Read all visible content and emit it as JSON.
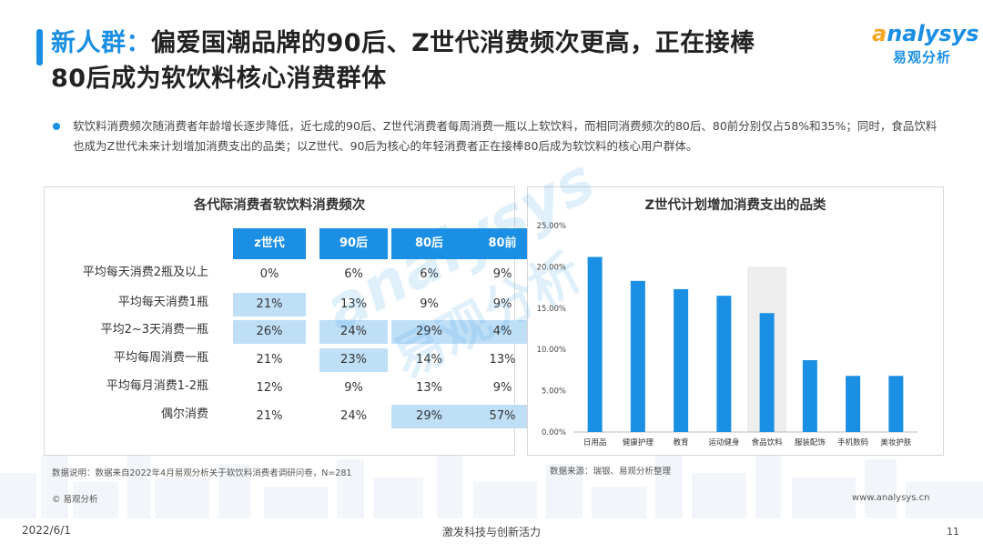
{
  "header": {
    "title_highlight": "新人群：",
    "title_line1_rest": "偏爱国潮品牌的90后、Z世代消费频次更高，正在接棒",
    "title_line2": "80后成为软饮料核心消费群体"
  },
  "logo": {
    "brand_a": "a",
    "brand_rest": "nalysys",
    "cn": "易观分析"
  },
  "watermark": {
    "brand": "analysys",
    "cn": "易观分析"
  },
  "summary": "软饮料消费频次随消费者年龄增长逐步降低，近七成的90后、Z世代消费者每周消费一瓶以上软饮料，而相同消费频次的80后、80前分别仅占58%和35%；同时，食品饮料也成为Z世代未来计划增加消费支出的品类；以Z世代、90后为核心的年轻消费者正在接棒80后成为软饮料的核心用户群体。",
  "left_panel": {
    "title": "各代际消费者软饮料消费频次",
    "columns": [
      "z世代",
      "90后",
      "80后",
      "80前"
    ],
    "rows": [
      {
        "label": "平均每天消费2瓶及以上",
        "values": [
          "0%",
          "6%",
          "6%",
          "9%"
        ],
        "highlight": [
          false,
          false,
          false,
          false
        ]
      },
      {
        "label": "平均每天消费1瓶",
        "values": [
          "21%",
          "13%",
          "9%",
          "9%"
        ],
        "highlight": [
          true,
          false,
          false,
          false
        ]
      },
      {
        "label": "平均2~3天消费一瓶",
        "values": [
          "26%",
          "24%",
          "29%",
          "4%"
        ],
        "highlight": [
          true,
          true,
          true,
          true
        ]
      },
      {
        "label": "平均每周消费一瓶",
        "values": [
          "21%",
          "23%",
          "14%",
          "13%"
        ],
        "highlight": [
          false,
          true,
          false,
          false
        ]
      },
      {
        "label": "平均每月消费1-2瓶",
        "values": [
          "12%",
          "9%",
          "13%",
          "9%"
        ],
        "highlight": [
          false,
          false,
          false,
          false
        ]
      },
      {
        "label": "偶尔消费",
        "values": [
          "21%",
          "24%",
          "29%",
          "57%"
        ],
        "highlight": [
          false,
          false,
          true,
          true
        ]
      }
    ],
    "note": "数据说明：数据来自2022年4月易观分析关于软饮料消费者调研问卷，N=281"
  },
  "chart_data": {
    "type": "bar",
    "title": "Z世代计划增加消费支出的品类",
    "categories": [
      "日用品",
      "健康护理",
      "教育",
      "运动健身",
      "食品饮料",
      "服装配饰",
      "手机数码",
      "美妆护肤"
    ],
    "values": [
      21.2,
      18.3,
      17.3,
      16.5,
      14.4,
      8.7,
      6.8,
      6.8
    ],
    "highlight_category": "食品饮料",
    "ylim": [
      0,
      25
    ],
    "yticks": [
      "0.00%",
      "5.00%",
      "10.00%",
      "15.00%",
      "20.00%",
      "25.00%"
    ],
    "color": "#1a8fe3",
    "source": "数据来源：瑞银、易观分析整理"
  },
  "footer": {
    "copyright": "© 易观分析",
    "website": "www.analysys.cn",
    "date": "2022/6/1",
    "slogan": "激发科技与创新活力",
    "page": "11"
  }
}
